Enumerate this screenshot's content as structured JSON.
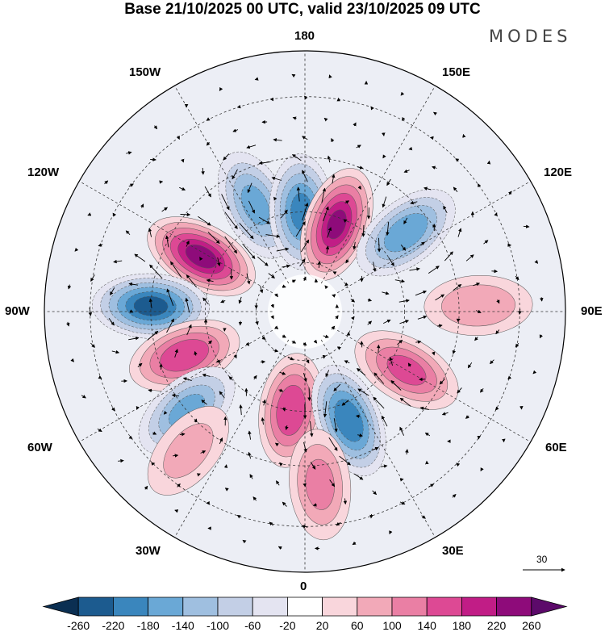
{
  "header": {
    "title": "Base 21/10/2025 00 UTC, valid 23/10/2025 09 UTC",
    "brand": "MODES"
  },
  "map": {
    "projection": "north-polar-stereographic",
    "longitude_labels": {
      "top": "180",
      "top_left": "150W",
      "top_right": "150E",
      "upper_left": "120W",
      "upper_right": "120E",
      "left": "90W",
      "right": "90E",
      "lower_left": "60W",
      "lower_right": "60E",
      "bottom_left": "30W",
      "bottom_right": "30E",
      "bottom": "0"
    },
    "vector_scale_label": "30",
    "anomaly_centers": [
      {
        "name": "alaska-negative",
        "lon": -155,
        "lat": 55,
        "value": -160,
        "type": "negative"
      },
      {
        "name": "bering-negative",
        "lon": -178,
        "lat": 60,
        "value": -200,
        "type": "negative"
      },
      {
        "name": "east-siberia-positive",
        "lon": 160,
        "lat": 62,
        "value": 230,
        "type": "positive"
      },
      {
        "name": "siberia-negative",
        "lon": 128,
        "lat": 52,
        "value": -180,
        "type": "negative"
      },
      {
        "name": "canada-positive",
        "lon": -118,
        "lat": 55,
        "value": 240,
        "type": "positive"
      },
      {
        "name": "hudson-negative",
        "lon": -92,
        "lat": 45,
        "value": -240,
        "type": "negative"
      },
      {
        "name": "labrador-positive",
        "lon": -70,
        "lat": 52,
        "value": 180,
        "type": "positive"
      },
      {
        "name": "atlantic-negative",
        "lon": -50,
        "lat": 45,
        "value": -160,
        "type": "negative"
      },
      {
        "name": "greenland-sea-positive",
        "lon": -8,
        "lat": 60,
        "value": 180,
        "type": "positive"
      },
      {
        "name": "scandinavia-negative",
        "lon": 22,
        "lat": 55,
        "value": -220,
        "type": "negative"
      },
      {
        "name": "europe-south-positive",
        "lon": 5,
        "lat": 40,
        "value": 120,
        "type": "positive"
      },
      {
        "name": "central-asia-positive",
        "lon": 60,
        "lat": 55,
        "value": 160,
        "type": "positive"
      },
      {
        "name": "east-asia-positive",
        "lon": 92,
        "lat": 40,
        "value": 100,
        "type": "positive"
      },
      {
        "name": "west-europe-positive",
        "lon": -40,
        "lat": 38,
        "value": 80,
        "type": "positive"
      }
    ]
  },
  "colorbar": {
    "labels": [
      "-260",
      "-220",
      "-180",
      "-140",
      "-100",
      "-60",
      "-20",
      "20",
      "60",
      "100",
      "140",
      "180",
      "220",
      "260"
    ],
    "colors": [
      "#0b2f52",
      "#1c5b8f",
      "#3a86bd",
      "#6aa8d6",
      "#9fbfe0",
      "#c3cfe6",
      "#e4e4f1",
      "#ffffff",
      "#f9d6dc",
      "#f2a9b8",
      "#ea7fa4",
      "#dd4994",
      "#c11d86",
      "#8e0b7a",
      "#5c0a6a"
    ]
  }
}
